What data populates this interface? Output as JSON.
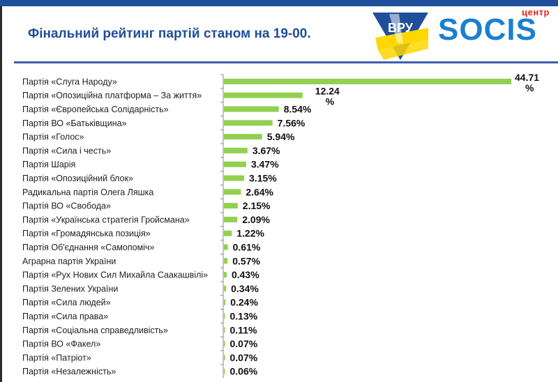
{
  "header": {
    "title": "Фінальний рейтинг партій станом на 19-00.",
    "logo_left_text": "ВРУ",
    "logo_right_top": "центр",
    "logo_right_word": "SOCIS"
  },
  "colors": {
    "bar": "#92d050",
    "title": "#1f4e9a",
    "accent": "#1f4e9a"
  },
  "chart_data": {
    "type": "bar",
    "orientation": "horizontal",
    "title": "Фінальний рейтинг партій станом на 19-00.",
    "xlim": [
      0,
      44.71
    ],
    "categories": [
      "Партія «Слуга Народу»",
      "Партія «Опозиційна платформа – За життя»",
      "Партія «Європейська Солідарність»",
      "Партія ВО «Батьківщина»",
      "Партія «Голос»",
      "Партія «Сила і честь»",
      "Партія Шарія",
      "Партія «Опозиційний блок»",
      "Радикальна партія Олега Ляшка",
      "Партія ВО «Свобода»",
      "Партія «Українська стратегія Гройсмана»",
      "Партія «Громадянська позиція»",
      "Партія Об'єднання «Самопоміч»",
      "Аграрна партія України",
      "Партія «Рух Нових Сил Михайла Саакашвілі»",
      "Партія Зелених України",
      "Партія «Сила людей»",
      "Партія «Сила права»",
      "Партія «Соціальна справедливість»",
      "Партія ВО «Факел»",
      "Партія «Патріот»",
      "Партія «Незалежність»"
    ],
    "values": [
      44.71,
      12.24,
      8.54,
      7.56,
      5.94,
      3.67,
      3.47,
      3.15,
      2.64,
      2.15,
      2.09,
      1.22,
      0.61,
      0.57,
      0.43,
      0.34,
      0.24,
      0.13,
      0.11,
      0.07,
      0.07,
      0.06
    ],
    "value_labels": [
      "44.71 %",
      "12.24 %",
      "8.54%",
      "7.56%",
      "5.94%",
      "3.67%",
      "3.47%",
      "3.15%",
      "2.64%",
      "2.15%",
      "2.09%",
      "1.22%",
      "0.61%",
      "0.57%",
      "0.43%",
      "0.34%",
      "0.24%",
      "0.13%",
      "0.11%",
      "0.07%",
      "0.07%",
      "0.06%"
    ]
  }
}
